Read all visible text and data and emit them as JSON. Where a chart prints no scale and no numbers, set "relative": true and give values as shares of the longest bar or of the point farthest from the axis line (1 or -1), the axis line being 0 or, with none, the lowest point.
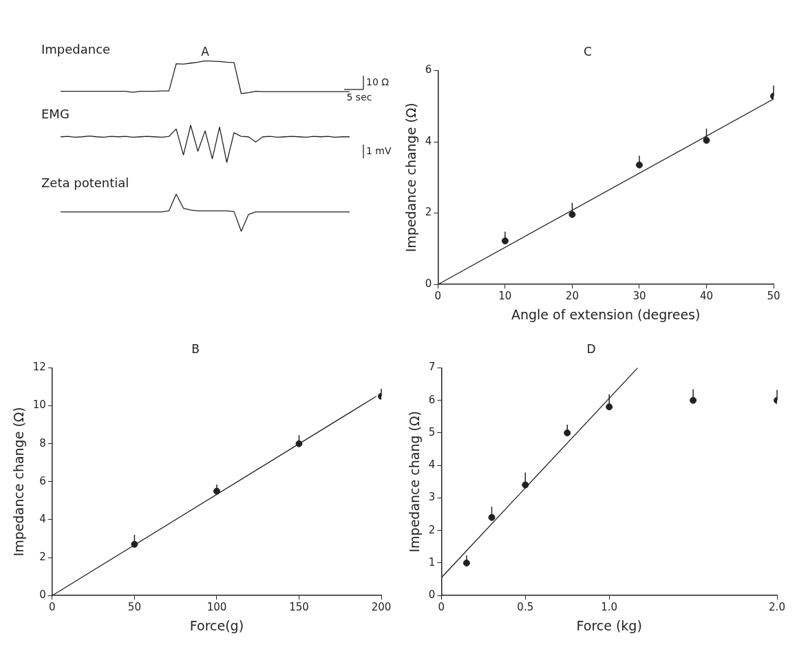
{
  "chart_data": [
    {
      "type": "line",
      "title": "A",
      "relative": true,
      "categories": [
        null,
        null,
        null,
        null,
        null,
        null,
        null,
        null,
        null,
        null,
        null,
        null,
        null,
        null,
        null,
        null,
        null,
        null,
        null,
        null,
        null,
        null,
        null,
        null,
        null,
        null,
        null,
        null,
        null,
        null,
        null,
        null,
        null,
        null,
        null,
        null,
        null,
        null,
        null,
        null,
        null
      ],
      "series": [
        {
          "name": "Impedance",
          "color": "#222222",
          "values": [
            0.07,
            0.07,
            0.07,
            0.07,
            0.07,
            0.07,
            0.07,
            0.07,
            0.07,
            0.07,
            0.04,
            0.07,
            0.07,
            0.07,
            0.08,
            0.08,
            0.91,
            0.9,
            0.93,
            0.96,
            1.0,
            0.99,
            0.98,
            0.96,
            0.95,
            0.0,
            0.03,
            0.07,
            0.06,
            0.06,
            0.06,
            0.06,
            0.06,
            0.06,
            0.06,
            0.06,
            0.06,
            0.06,
            0.06,
            0.06,
            0.06
          ]
        }
      ],
      "annotations": [
        "10 Ω",
        "5 sec"
      ]
    },
    {
      "type": "line",
      "relative": true,
      "categories": [
        null,
        null,
        null,
        null,
        null,
        null,
        null,
        null,
        null,
        null,
        null,
        null,
        null,
        null,
        null,
        null,
        null,
        null,
        null,
        null,
        null,
        null,
        null,
        null,
        null,
        null,
        null,
        null,
        null,
        null,
        null,
        null,
        null,
        null,
        null,
        null,
        null,
        null,
        null,
        null,
        null
      ],
      "series": [
        {
          "name": "EMG",
          "color": "#222222",
          "values": [
            0.69,
            0.7,
            0.68,
            0.69,
            0.71,
            0.69,
            0.68,
            0.7,
            0.69,
            0.7,
            0.68,
            0.69,
            0.7,
            0.69,
            0.68,
            0.7,
            0.9,
            0.2,
            1.0,
            0.3,
            0.85,
            0.1,
            0.95,
            0.0,
            0.8,
            0.7,
            0.69,
            0.55,
            0.69,
            0.7,
            0.68,
            0.69,
            0.7,
            0.69,
            0.68,
            0.7,
            0.69,
            0.7,
            0.68,
            0.69,
            0.69
          ]
        }
      ],
      "annotations": [
        "1 mV"
      ]
    },
    {
      "type": "line",
      "relative": true,
      "categories": [
        null,
        null,
        null,
        null,
        null,
        null,
        null,
        null,
        null,
        null,
        null,
        null,
        null,
        null,
        null,
        null,
        null,
        null,
        null,
        null,
        null,
        null,
        null,
        null,
        null,
        null,
        null,
        null,
        null,
        null,
        null,
        null,
        null,
        null,
        null,
        null,
        null,
        null,
        null,
        null,
        null
      ],
      "series": [
        {
          "name": "Zeta potential",
          "color": "#222222",
          "values": [
            0.52,
            0.52,
            0.52,
            0.52,
            0.52,
            0.52,
            0.52,
            0.52,
            0.52,
            0.52,
            0.52,
            0.52,
            0.52,
            0.52,
            0.52,
            0.55,
            1.0,
            0.62,
            0.57,
            0.55,
            0.55,
            0.55,
            0.55,
            0.55,
            0.53,
            0.0,
            0.45,
            0.52,
            0.52,
            0.52,
            0.52,
            0.52,
            0.52,
            0.52,
            0.52,
            0.52,
            0.52,
            0.52,
            0.52,
            0.52,
            0.52
          ]
        }
      ]
    },
    {
      "type": "scatter",
      "title": "C",
      "xlabel": "Angle of extension (degrees)",
      "ylabel": "Impedance change (Ω)",
      "xlim": [
        0,
        50
      ],
      "ylim": [
        0,
        6
      ],
      "xticks": [
        0,
        10,
        20,
        30,
        40,
        50
      ],
      "yticks": [
        0,
        2,
        4,
        6
      ],
      "series": [
        {
          "marker": "circle",
          "color": "#222222",
          "x": [
            10,
            20,
            30,
            40,
            50
          ],
          "values": [
            1.22,
            1.96,
            3.35,
            4.04,
            5.28
          ],
          "errors": [
            [
              1.22,
              1.48
            ],
            [
              1.96,
              2.29
            ],
            [
              3.35,
              3.61
            ],
            [
              4.04,
              4.37
            ],
            [
              5.28,
              5.58
            ]
          ]
        },
        {
          "type": "line",
          "marker": "none",
          "color": "#222222",
          "x": [
            0,
            50
          ],
          "values": [
            0,
            5.2
          ]
        }
      ]
    },
    {
      "type": "scatter",
      "title": "B",
      "xlabel": "Force(g)",
      "ylabel": "Impedance change (Ω)",
      "xlim": [
        0,
        200
      ],
      "ylim": [
        0,
        12
      ],
      "xticks": [
        0,
        50,
        100,
        150,
        200
      ],
      "yticks": [
        0,
        2,
        4,
        6,
        8,
        10,
        12
      ],
      "series": [
        {
          "marker": "circle",
          "color": "#222222",
          "x": [
            50,
            100,
            150,
            200
          ],
          "values": [
            2.7,
            5.5,
            8.0,
            10.5
          ],
          "errors": [
            [
              2.7,
              3.2
            ],
            [
              5.5,
              5.85
            ],
            [
              8.0,
              8.45
            ],
            [
              10.5,
              10.9
            ]
          ]
        },
        {
          "type": "line",
          "marker": "none",
          "color": "#222222",
          "x": [
            0,
            197
          ],
          "values": [
            0,
            10.5
          ]
        }
      ]
    },
    {
      "type": "scatter",
      "title": "D",
      "xlabel": "Force (kg)",
      "ylabel": "Impedance chang (Ω)",
      "xlim": [
        0,
        2
      ],
      "ylim": [
        0,
        7
      ],
      "xticks": [
        0,
        0.5,
        {
          "value": 1,
          "label": "1.0"
        },
        {
          "value": 2,
          "label": "2.0"
        }
      ],
      "yticks": [
        0,
        1,
        2,
        3,
        4,
        5,
        6,
        7
      ],
      "series": [
        {
          "marker": "circle",
          "color": "#222222",
          "x": [
            0.15,
            0.3,
            0.5,
            0.75,
            1.0,
            1.5,
            2.0
          ],
          "values": [
            1.0,
            2.4,
            3.4,
            5.0,
            5.8,
            6.0,
            6.0
          ],
          "errors": [
            [
              1.0,
              1.23
            ],
            [
              2.4,
              2.73
            ],
            [
              3.4,
              3.78
            ],
            [
              5.0,
              5.25
            ],
            [
              5.8,
              6.19
            ],
            [
              6.0,
              6.34
            ],
            [
              6.0,
              6.32
            ]
          ]
        },
        {
          "type": "line",
          "marker": "none",
          "color": "#222222",
          "x": [
            0,
            1.17
          ],
          "values": [
            0.55,
            7.0
          ]
        }
      ]
    }
  ]
}
